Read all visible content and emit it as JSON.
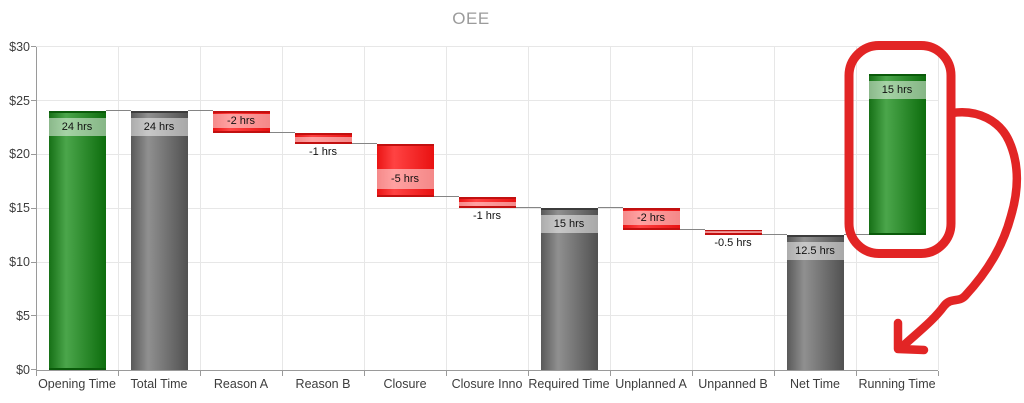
{
  "title": "OEE",
  "chart_data": {
    "type": "bar",
    "subtype": "waterfall",
    "title": "OEE",
    "legend": "none",
    "grid": true,
    "categories": [
      "Opening Time",
      "Total Time",
      "Reason A",
      "Reason B",
      "Closure",
      "Closure Inno",
      "Required Time",
      "Unplanned A",
      "Unpanned B",
      "Net Time",
      "Running Time"
    ],
    "bars": [
      {
        "category": "Opening Time",
        "label": "24 hrs",
        "value": 24,
        "start": 0,
        "end": 24,
        "color": "green",
        "label_position": "inside"
      },
      {
        "category": "Total Time",
        "label": "24 hrs",
        "value": 24,
        "start": 0,
        "end": 24,
        "color": "gray",
        "label_position": "inside"
      },
      {
        "category": "Reason A",
        "label": "-2 hrs",
        "value": -2,
        "start": 24,
        "end": 22,
        "color": "red",
        "label_position": "inside"
      },
      {
        "category": "Reason B",
        "label": "-1 hrs",
        "value": -1,
        "start": 22,
        "end": 21,
        "color": "red",
        "label_position": "below"
      },
      {
        "category": "Closure",
        "label": "-5 hrs",
        "value": -5,
        "start": 21,
        "end": 16,
        "color": "red",
        "label_position": "inside"
      },
      {
        "category": "Closure Inno",
        "label": "-1 hrs",
        "value": -1,
        "start": 16,
        "end": 15,
        "color": "red",
        "label_position": "below"
      },
      {
        "category": "Required Time",
        "label": "15 hrs",
        "value": 15,
        "start": 0,
        "end": 15,
        "color": "gray",
        "label_position": "inside"
      },
      {
        "category": "Unplanned A",
        "label": "-2 hrs",
        "value": -2,
        "start": 15,
        "end": 13,
        "color": "red",
        "label_position": "inside"
      },
      {
        "category": "Unpanned B",
        "label": "-0.5 hrs",
        "value": -0.5,
        "start": 13,
        "end": 12.5,
        "color": "red",
        "label_position": "below"
      },
      {
        "category": "Net Time",
        "label": "12.5 hrs",
        "value": 12.5,
        "start": 0,
        "end": 12.5,
        "color": "gray",
        "label_position": "inside"
      },
      {
        "category": "Running Time",
        "label": "15 hrs",
        "value": 15,
        "start": 12.5,
        "end": 27.5,
        "color": "green",
        "label_position": "inside"
      }
    ],
    "y_axis": {
      "tick_labels": [
        "$30",
        "$25",
        "$20",
        "$15",
        "$10",
        "$5",
        "$0"
      ],
      "tick_values": [
        30,
        25,
        20,
        15,
        10,
        5,
        0
      ],
      "min": 0,
      "max": 30,
      "format": "currency"
    },
    "colors": {
      "positive_bar": "#178017",
      "subtotal_bar": "#6e6e6e",
      "negative_bar": "#f02015",
      "connector": "#858585",
      "grid": "#e7e7e7",
      "axis_line": "#9a9a9a",
      "axis_text": "#3d3d3d",
      "title_text": "#9b9b9b",
      "annotation": "#e22525"
    },
    "annotation": {
      "type": "hand-drawn-marker",
      "color": "#e22525",
      "target": "Running Time",
      "shapes": [
        "rounded rectangle circling the Running Time bar",
        "curved arrow pointing down toward the x-axis at Running Time"
      ]
    }
  }
}
